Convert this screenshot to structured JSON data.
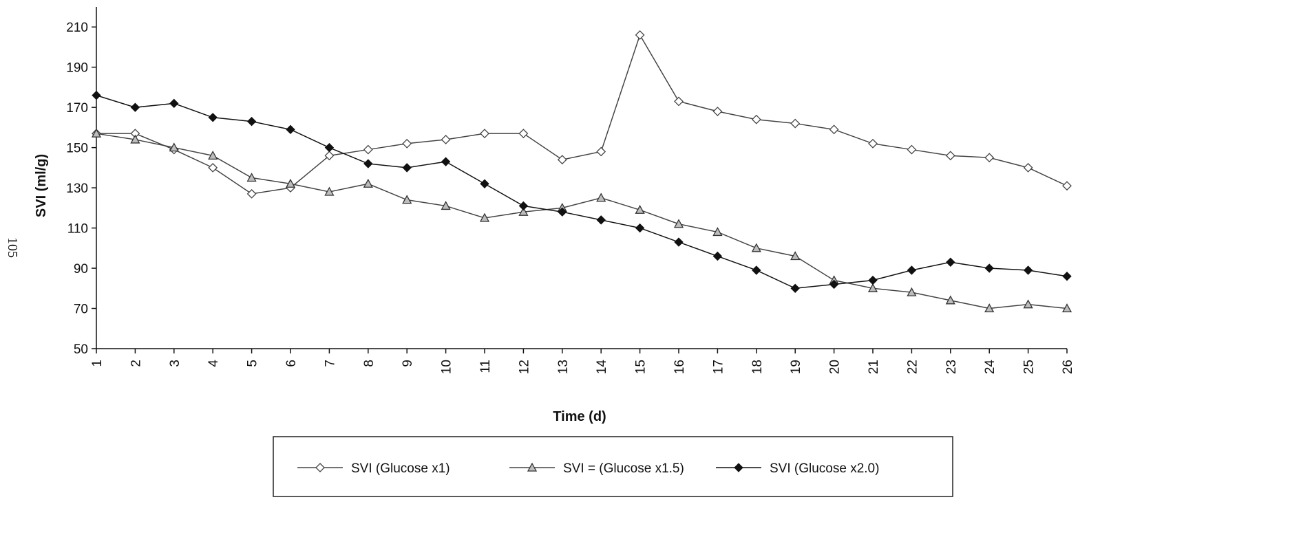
{
  "page": {
    "page_number": "105"
  },
  "chart_data": {
    "type": "line",
    "xlabel": "Time (d)",
    "ylabel": "SVI (ml/g)",
    "categories": [
      "1",
      "2",
      "3",
      "4",
      "5",
      "6",
      "7",
      "8",
      "9",
      "10",
      "11",
      "12",
      "13",
      "14",
      "15",
      "16",
      "17",
      "18",
      "19",
      "20",
      "21",
      "22",
      "23",
      "24",
      "25",
      "26"
    ],
    "yticks": [
      50,
      70,
      90,
      110,
      130,
      150,
      170,
      190,
      210
    ],
    "ylim": [
      50,
      220
    ],
    "grid": false,
    "legend_position": "bottom",
    "series": [
      {
        "name": "SVI  (Glucose x1)",
        "marker": "diamond-open",
        "color": "#444444",
        "values": [
          157,
          157,
          149,
          140,
          127,
          130,
          146,
          149,
          152,
          154,
          157,
          157,
          144,
          148,
          206,
          173,
          168,
          164,
          162,
          159,
          152,
          149,
          146,
          145,
          140,
          131
        ]
      },
      {
        "name": "SVI = (Glucose x1.5)",
        "marker": "triangle",
        "color": "#444444",
        "values": [
          157,
          154,
          150,
          146,
          135,
          132,
          128,
          132,
          124,
          121,
          115,
          118,
          120,
          125,
          119,
          112,
          108,
          100,
          96,
          84,
          80,
          78,
          74,
          70,
          72,
          70
        ]
      },
      {
        "name": "SVI   (Glucose x2.0)",
        "marker": "diamond-filled",
        "color": "#111111",
        "values": [
          176,
          170,
          172,
          165,
          163,
          159,
          150,
          142,
          140,
          143,
          132,
          121,
          118,
          114,
          110,
          103,
          96,
          89,
          80,
          82,
          84,
          89,
          93,
          90,
          89,
          86
        ]
      }
    ]
  }
}
